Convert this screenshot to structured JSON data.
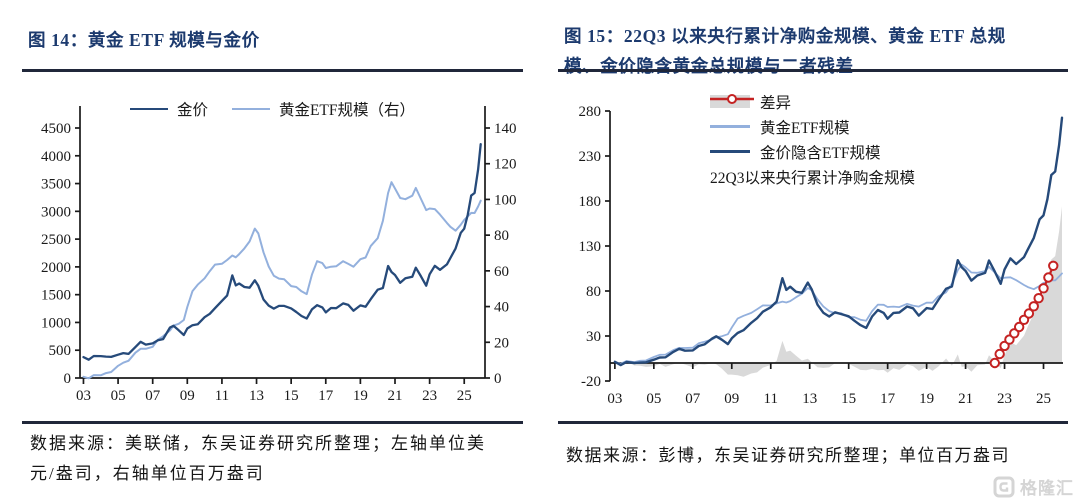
{
  "colors": {
    "title": "#1c3a6e",
    "rule": "#20273a",
    "axis": "#1a1a1a",
    "dark_blue": "#264a7a",
    "light_blue": "#93b0dd",
    "red": "#c42222",
    "gray_area": "#d9d9d9",
    "logo_gray": "#d5d5d5"
  },
  "left_figure": {
    "title": "图 14：黄金 ETF 规模与金价",
    "source_line1": "数据来源：美联储，东吴证券研究所整理；左轴单位美",
    "source_line2": "元/盎司，右轴单位百万盎司"
  },
  "right_figure": {
    "title_line1": "图 15：22Q3 以来央行累计净购金规模、黄金 ETF 总规",
    "title_line2": "模、金价隐含黄金总规模与二者残差",
    "source": "数据来源：彭博，东吴证券研究所整理；单位百万盎司"
  },
  "watermark": {
    "logo_text": "格隆汇"
  },
  "chart_data": [
    {
      "id": "fig14",
      "type": "line",
      "title": "黄金 ETF 规模与金价",
      "legend_position": "top-center",
      "x_tick_labels": [
        "03",
        "05",
        "07",
        "09",
        "11",
        "13",
        "15",
        "17",
        "19",
        "21",
        "23",
        "25"
      ],
      "x_tick_years": [
        2003,
        2005,
        2007,
        2009,
        2011,
        2013,
        2015,
        2017,
        2019,
        2021,
        2023,
        2025
      ],
      "left_axis": {
        "unit": "美元/盎司",
        "range": [
          0,
          4500
        ],
        "ticks": [
          0,
          500,
          1000,
          1500,
          2000,
          2500,
          3000,
          3500,
          4000,
          4500
        ]
      },
      "right_axis": {
        "unit": "百万盎司",
        "range": [
          0,
          140
        ],
        "ticks": [
          0,
          20,
          40,
          60,
          80,
          100,
          120,
          140
        ]
      },
      "x": [
        2003.0,
        2003.3,
        2003.6,
        2004.0,
        2004.3,
        2004.6,
        2005.0,
        2005.3,
        2005.6,
        2006.0,
        2006.3,
        2006.6,
        2007.0,
        2007.3,
        2007.6,
        2008.0,
        2008.2,
        2008.5,
        2008.8,
        2009.0,
        2009.3,
        2009.6,
        2010.0,
        2010.3,
        2010.6,
        2011.0,
        2011.3,
        2011.6,
        2011.8,
        2012.0,
        2012.3,
        2012.6,
        2012.9,
        2013.1,
        2013.4,
        2013.7,
        2014.0,
        2014.3,
        2014.6,
        2015.0,
        2015.3,
        2015.6,
        2015.9,
        2016.2,
        2016.5,
        2016.8,
        2017.0,
        2017.3,
        2017.6,
        2018.0,
        2018.3,
        2018.6,
        2019.0,
        2019.3,
        2019.6,
        2020.0,
        2020.3,
        2020.6,
        2020.8,
        2021.0,
        2021.3,
        2021.6,
        2022.0,
        2022.2,
        2022.5,
        2022.8,
        2023.0,
        2023.3,
        2023.6,
        2024.0,
        2024.2,
        2024.5,
        2024.8,
        2025.0,
        2025.2,
        2025.4,
        2025.6,
        2025.8,
        2025.95
      ],
      "series": [
        {
          "name": "金价",
          "axis": "left",
          "color_key": "dark_blue",
          "z": 2,
          "width": 2.3,
          "values": [
            355,
            350,
            375,
            410,
            395,
            400,
            425,
            430,
            445,
            550,
            640,
            590,
            640,
            665,
            690,
            920,
            960,
            880,
            790,
            900,
            930,
            960,
            1100,
            1160,
            1240,
            1390,
            1480,
            1860,
            1680,
            1720,
            1620,
            1610,
            1770,
            1660,
            1400,
            1290,
            1240,
            1310,
            1290,
            1270,
            1190,
            1130,
            1070,
            1240,
            1330,
            1260,
            1160,
            1250,
            1270,
            1330,
            1320,
            1200,
            1290,
            1300,
            1420,
            1580,
            1620,
            2030,
            1920,
            1850,
            1720,
            1790,
            1820,
            1970,
            1820,
            1660,
            1870,
            2000,
            1930,
            2050,
            2170,
            2350,
            2620,
            2670,
            2950,
            3300,
            3350,
            3750,
            4200
          ]
        },
        {
          "name": "黄金ETF规模（右）",
          "axis": "right",
          "color_key": "light_blue",
          "z": 1,
          "width": 2.0,
          "values": [
            0,
            0.5,
            1,
            2,
            3,
            4,
            7,
            8,
            10,
            14,
            16,
            16,
            18,
            21,
            23,
            27,
            30,
            31,
            33,
            40,
            48,
            52,
            56,
            60,
            63,
            64,
            66,
            69,
            68,
            70,
            72,
            76,
            84,
            81,
            70,
            62,
            57,
            56,
            55,
            52,
            51,
            49,
            47,
            58,
            66,
            64,
            61,
            62,
            63,
            65,
            64,
            62,
            66,
            68,
            74,
            78,
            88,
            104,
            110,
            106,
            101,
            100,
            102,
            106,
            100,
            94,
            95,
            94,
            91,
            87,
            85,
            83,
            86,
            88,
            91,
            93,
            93,
            96,
            99
          ]
        }
      ]
    },
    {
      "id": "fig15",
      "type": "line+area",
      "title": "22Q3 以来央行累计净购金规模、黄金 ETF 总规模、金价隐含黄金总规模与二者残差",
      "legend_position": "top-left-inside",
      "unit": "百万盎司",
      "x_tick_labels": [
        "03",
        "05",
        "07",
        "09",
        "11",
        "13",
        "15",
        "17",
        "19",
        "21",
        "23",
        "25"
      ],
      "x_tick_years": [
        2003,
        2005,
        2007,
        2009,
        2011,
        2013,
        2015,
        2017,
        2019,
        2021,
        2023,
        2025
      ],
      "y_axis": {
        "range": [
          -20,
          280
        ],
        "ticks": [
          -20,
          30,
          80,
          130,
          180,
          230,
          280
        ]
      },
      "area": {
        "name": "差异",
        "derived": "金价隐含ETF规模 - 黄金ETF规模",
        "color_key": "gray_area"
      },
      "x": [
        2003.0,
        2003.3,
        2003.6,
        2004.0,
        2004.3,
        2004.6,
        2005.0,
        2005.3,
        2005.6,
        2006.0,
        2006.3,
        2006.6,
        2007.0,
        2007.3,
        2007.6,
        2008.0,
        2008.2,
        2008.5,
        2008.8,
        2009.0,
        2009.3,
        2009.6,
        2010.0,
        2010.3,
        2010.6,
        2011.0,
        2011.3,
        2011.6,
        2011.8,
        2012.0,
        2012.3,
        2012.6,
        2012.9,
        2013.1,
        2013.4,
        2013.7,
        2014.0,
        2014.3,
        2014.6,
        2015.0,
        2015.3,
        2015.6,
        2015.9,
        2016.2,
        2016.5,
        2016.8,
        2017.0,
        2017.3,
        2017.6,
        2018.0,
        2018.3,
        2018.6,
        2019.0,
        2019.3,
        2019.6,
        2020.0,
        2020.3,
        2020.6,
        2020.8,
        2021.0,
        2021.3,
        2021.6,
        2022.0,
        2022.2,
        2022.5,
        2022.8,
        2023.0,
        2023.3,
        2023.6,
        2024.0,
        2024.2,
        2024.5,
        2024.8,
        2025.0,
        2025.2,
        2025.4,
        2025.6,
        2025.8,
        2025.95
      ],
      "series": [
        {
          "name": "黄金ETF规模",
          "color_key": "light_blue",
          "z": 1,
          "width": 1.8,
          "values": [
            0,
            0.5,
            1,
            2,
            3,
            4,
            7,
            8,
            10,
            14,
            16,
            16,
            18,
            21,
            23,
            27,
            30,
            31,
            33,
            40,
            48,
            52,
            56,
            60,
            63,
            64,
            66,
            69,
            68,
            70,
            72,
            76,
            84,
            81,
            70,
            62,
            57,
            56,
            55,
            52,
            51,
            49,
            47,
            58,
            66,
            64,
            61,
            62,
            63,
            65,
            64,
            62,
            66,
            68,
            74,
            78,
            88,
            104,
            110,
            106,
            101,
            100,
            102,
            106,
            100,
            94,
            95,
            94,
            91,
            87,
            85,
            83,
            86,
            88,
            91,
            93,
            93,
            96,
            99
          ]
        },
        {
          "name": "金价隐含ETF规模",
          "color_key": "dark_blue",
          "z": 2,
          "width": 2.4,
          "values": [
            0,
            -1,
            0,
            1,
            1,
            2,
            4,
            5,
            7,
            12,
            15,
            13,
            15,
            18,
            20,
            28,
            31,
            27,
            22,
            28,
            32,
            36,
            45,
            50,
            56,
            62,
            68,
            95,
            82,
            86,
            78,
            77,
            90,
            82,
            64,
            55,
            51,
            57,
            54,
            53,
            47,
            43,
            39,
            52,
            60,
            55,
            48,
            55,
            57,
            62,
            61,
            52,
            60,
            61,
            70,
            82,
            85,
            115,
            107,
            102,
            92,
            97,
            100,
            113,
            101,
            88,
            104,
            115,
            109,
            118,
            127,
            140,
            160,
            163,
            183,
            210,
            214,
            242,
            272
          ]
        },
        {
          "name": "22Q3以来央行累计净购金规模",
          "color_key": "red",
          "z": 3,
          "width": 2.2,
          "marker": "circle",
          "x": [
            2022.5,
            2022.75,
            2023.0,
            2023.25,
            2023.5,
            2023.75,
            2024.0,
            2024.25,
            2024.5,
            2024.75,
            2025.0,
            2025.25,
            2025.5
          ],
          "values": [
            0,
            10,
            19,
            26,
            33,
            40,
            48,
            55,
            63,
            72,
            83,
            95,
            108
          ]
        }
      ]
    }
  ]
}
